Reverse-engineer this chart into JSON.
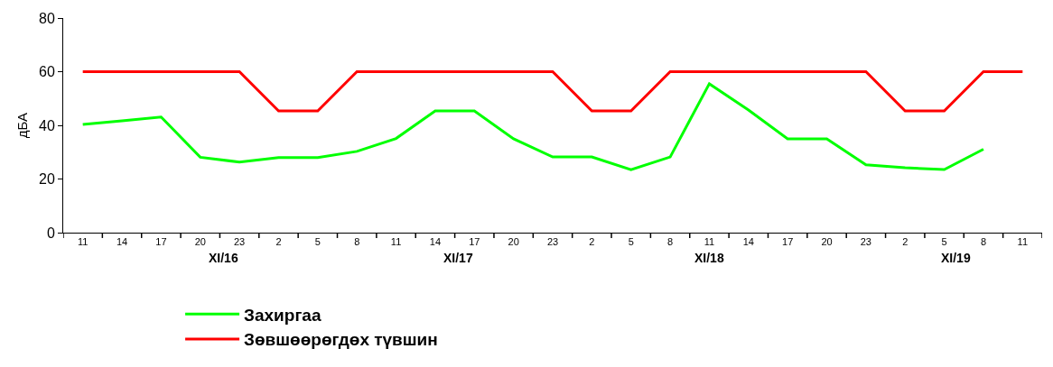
{
  "chart_data": {
    "type": "line",
    "ylabel": "дБА",
    "categories": [
      "11",
      "14",
      "17",
      "20",
      "23",
      "2",
      "5",
      "8",
      "11",
      "14",
      "17",
      "20",
      "23",
      "2",
      "5",
      "8",
      "11",
      "14",
      "17",
      "20",
      "23",
      "2",
      "5",
      "8",
      "11"
    ],
    "series": [
      {
        "name": "Захиргаа",
        "color": "#00ff00",
        "values": [
          40.3,
          41.7,
          43.1,
          28.1,
          26.3,
          28,
          28,
          30.3,
          35.1,
          45.4,
          45.4,
          35,
          28.2,
          28.2,
          23.5,
          28.2,
          55.5,
          45.7,
          35,
          35,
          25.3,
          24.2,
          23.5,
          31.1,
          null
        ]
      },
      {
        "name": "Зөвшөөрөгдөх түвшин",
        "color": "#ff0000",
        "values": [
          60,
          60,
          60,
          60,
          60,
          45.4,
          45.4,
          60,
          60,
          60,
          60,
          60,
          60,
          45.4,
          45.4,
          60,
          60,
          60,
          60,
          60,
          60,
          45.4,
          45.4,
          60,
          60
        ]
      }
    ],
    "annotations": [
      "XI/16",
      "XI/17",
      "XI/18",
      "XI/19"
    ],
    "ylim": [
      0,
      80
    ],
    "yticks": [
      0,
      20,
      40,
      60,
      80
    ],
    "legend": "bottom",
    "marker": "none",
    "line_style": "solid"
  }
}
